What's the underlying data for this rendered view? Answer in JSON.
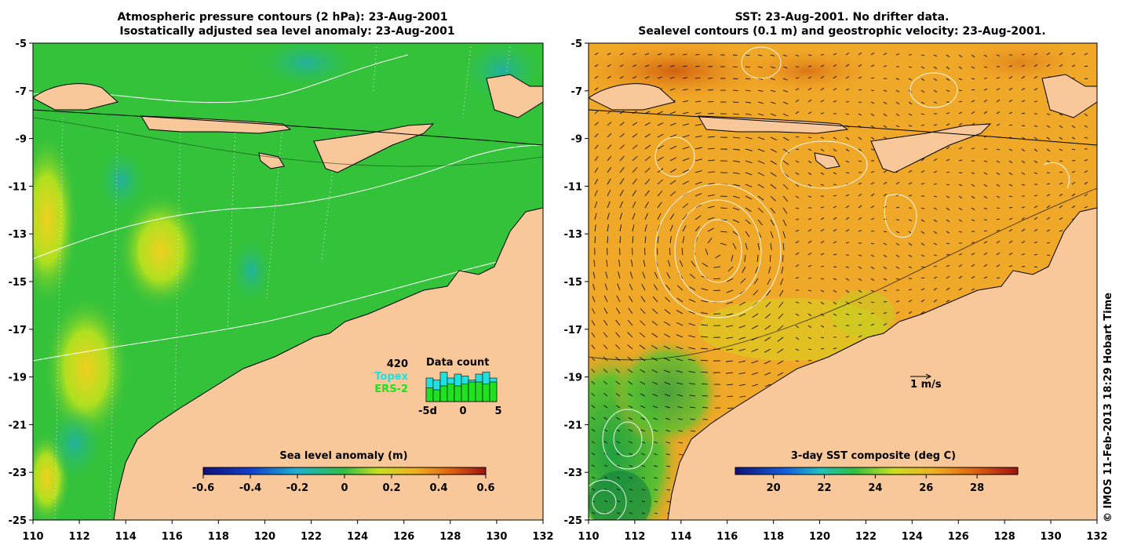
{
  "left_panel": {
    "title_line1": "Atmospheric pressure contours (2 hPa): 23-Aug-2001",
    "title_line2": "Isostatically adjusted sea level anomaly: 23-Aug-2001",
    "colorbar_label": "Sea level anomaly (m)",
    "colorbar_ticks": [
      "-0.6",
      "-0.4",
      "-0.2",
      "0",
      "0.2",
      "0.4",
      "0.6"
    ],
    "data_count": {
      "title": "Data count",
      "max_label": "420",
      "series1": "Topex",
      "series2": "ERS-2",
      "ticks": [
        "-5d",
        "0",
        "5"
      ],
      "topex_values": [
        0.6,
        0.55,
        0.75,
        0.6,
        0.7,
        0.65,
        0.55,
        0.7,
        0.75,
        0.6
      ],
      "ers2_values": [
        0.35,
        0.3,
        0.4,
        0.45,
        0.4,
        0.45,
        0.5,
        0.5,
        0.45,
        0.5
      ]
    }
  },
  "right_panel": {
    "title_line1": "SST: 23-Aug-2001. No drifter data.",
    "title_line2": "Sealevel contours (0.1 m) and geostrophic velocity: 23-Aug-2001.",
    "colorbar_label": "3-day SST composite (deg C)",
    "colorbar_ticks": [
      "20",
      "22",
      "24",
      "26",
      "28"
    ],
    "scale_arrow_label": "1 m/s"
  },
  "axes": {
    "lat_ticks": [
      "-5",
      "-7",
      "-9",
      "-11",
      "-13",
      "-15",
      "-17",
      "-19",
      "-21",
      "-23",
      "-25"
    ],
    "lon_ticks": [
      "110",
      "112",
      "114",
      "116",
      "118",
      "120",
      "122",
      "124",
      "126",
      "128",
      "130",
      "132"
    ]
  },
  "footer": {
    "credit": "© IMOS 11-Feb-2013 18:29 Hobart Time"
  },
  "colors": {
    "land": "#f8c89a",
    "sea_green": "#2fbf3a",
    "sst_orange": "#f0a020",
    "coast": "#000000"
  }
}
